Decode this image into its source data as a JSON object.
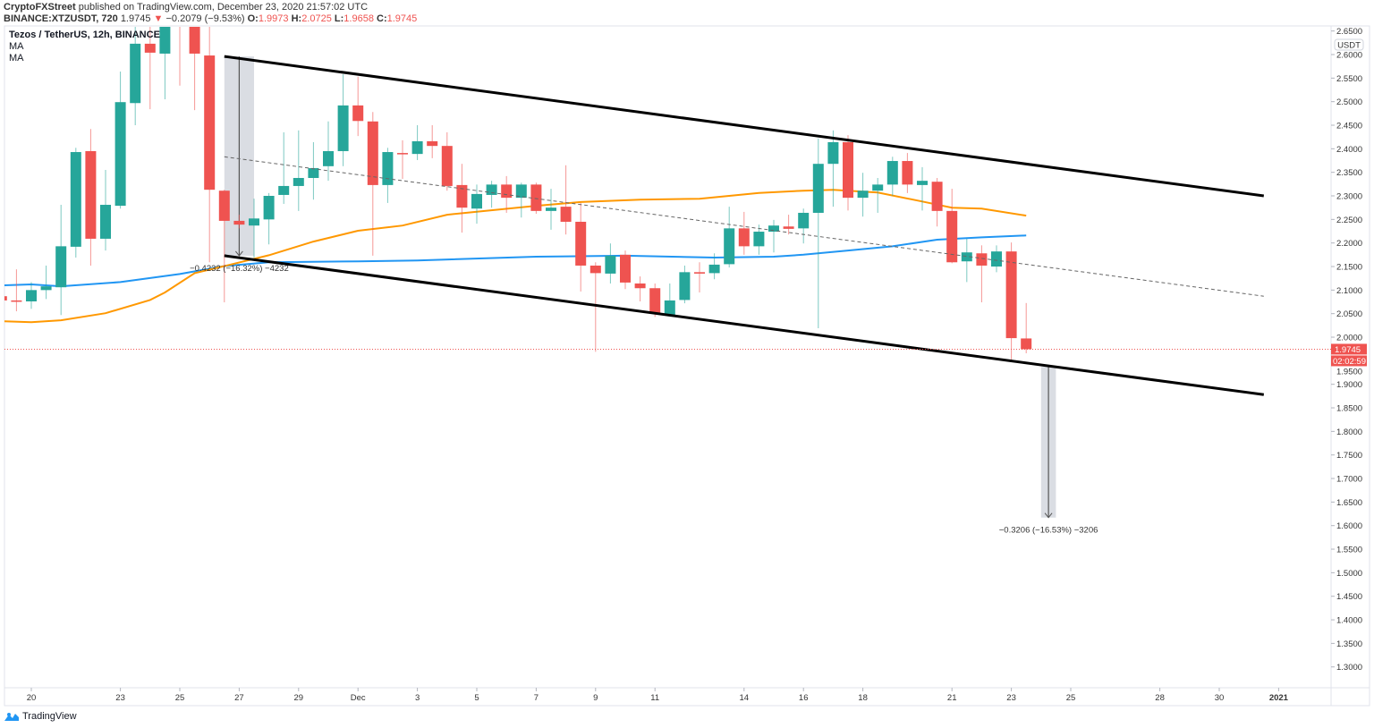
{
  "header": {
    "author": "CryptoFXStreet",
    "published": "published on TradingView.com, December 23, 2020 21:57:02 UTC",
    "symbol": "BINANCE:XTZUSDT, 720",
    "last": "1.9745",
    "change_arrow": "▼",
    "change": "−0.2079 (−9.53%)",
    "o_label": "O:",
    "o": "1.9973",
    "h_label": "H:",
    "h": "2.0725",
    "l_label": "L:",
    "l": "1.9658",
    "c_label": "C:",
    "c": "1.9745"
  },
  "legend": {
    "title": "Tezos / TetherUS, 12h, BINANCE",
    "ma1": "MA",
    "ma2": "MA"
  },
  "footer": {
    "brand": "TradingView",
    "icon": "tradingview-logo-icon"
  },
  "colors": {
    "up": "#26a69a",
    "down": "#ef5350",
    "ma_blue": "#2196f3",
    "ma_orange": "#ff9800",
    "channel": "#000000"
  },
  "chart_data": {
    "type": "candlestick",
    "title": "Tezos / TetherUS, 12h, BINANCE",
    "currency": "USDT",
    "ylim": [
      1.26,
      2.66
    ],
    "y_ticks": [
      "2.6500",
      "2.6000",
      "2.5500",
      "2.5000",
      "2.4500",
      "2.4000",
      "2.3500",
      "2.3000",
      "2.2500",
      "2.2000",
      "2.1500",
      "2.1000",
      "2.0500",
      "2.0000",
      "1.9500",
      "1.9000",
      "1.8500",
      "1.8000",
      "1.7500",
      "1.7000",
      "1.6500",
      "1.6000",
      "1.5500",
      "1.5000",
      "1.4500",
      "1.4000",
      "1.3500",
      "1.3000"
    ],
    "x_ticks": [
      {
        "label": "20",
        "t": "2020-11-20T00:00"
      },
      {
        "label": "23",
        "t": "2020-11-23T00:00"
      },
      {
        "label": "25",
        "t": "2020-11-25T00:00"
      },
      {
        "label": "27",
        "t": "2020-11-27T00:00"
      },
      {
        "label": "29",
        "t": "2020-11-29T00:00"
      },
      {
        "label": "Dec",
        "t": "2020-12-01T00:00"
      },
      {
        "label": "3",
        "t": "2020-12-03T00:00"
      },
      {
        "label": "5",
        "t": "2020-12-05T00:00"
      },
      {
        "label": "7",
        "t": "2020-12-07T00:00"
      },
      {
        "label": "9",
        "t": "2020-12-09T00:00"
      },
      {
        "label": "11",
        "t": "2020-12-11T00:00"
      },
      {
        "label": "14",
        "t": "2020-12-14T00:00"
      },
      {
        "label": "16",
        "t": "2020-12-16T00:00"
      },
      {
        "label": "18",
        "t": "2020-12-18T00:00"
      },
      {
        "label": "21",
        "t": "2020-12-21T00:00"
      },
      {
        "label": "23",
        "t": "2020-12-23T00:00"
      },
      {
        "label": "25",
        "t": "2020-12-25T00:00"
      },
      {
        "label": "28",
        "t": "2020-12-28T00:00"
      },
      {
        "label": "30",
        "t": "2020-12-30T00:00"
      },
      {
        "label": "2021",
        "t": "2021-01-01T00:00"
      }
    ],
    "candle_fields": [
      "t",
      "open",
      "high",
      "low",
      "close"
    ],
    "candles": [
      [
        "2020-11-19T00:00",
        2.087,
        2.091,
        2.07,
        2.078
      ],
      [
        "2020-11-19T12:00",
        2.078,
        2.144,
        2.055,
        2.076
      ],
      [
        "2020-11-20T00:00",
        2.076,
        2.117,
        2.06,
        2.1
      ],
      [
        "2020-11-20T12:00",
        2.1,
        2.152,
        2.081,
        2.108
      ],
      [
        "2020-11-21T00:00",
        2.106,
        2.281,
        2.047,
        2.193
      ],
      [
        "2020-11-21T12:00",
        2.192,
        2.402,
        2.169,
        2.393
      ],
      [
        "2020-11-22T00:00",
        2.395,
        2.442,
        2.152,
        2.209
      ],
      [
        "2020-11-22T12:00",
        2.209,
        2.355,
        2.184,
        2.281
      ],
      [
        "2020-11-23T00:00",
        2.279,
        2.564,
        2.273,
        2.499
      ],
      [
        "2020-11-23T12:00",
        2.497,
        2.68,
        2.45,
        2.623
      ],
      [
        "2020-11-24T00:00",
        2.623,
        2.67,
        2.484,
        2.604
      ],
      [
        "2020-11-24T12:00",
        2.602,
        2.72,
        2.505,
        2.68
      ],
      [
        "2020-11-25T00:00",
        2.7,
        2.75,
        2.534,
        2.67
      ],
      [
        "2020-11-25T12:00",
        2.68,
        2.72,
        2.482,
        2.602
      ],
      [
        "2020-11-26T00:00",
        2.598,
        2.67,
        2.159,
        2.313
      ],
      [
        "2020-11-26T12:00",
        2.311,
        2.313,
        2.074,
        2.247
      ],
      [
        "2020-11-27T00:00",
        2.247,
        2.26,
        2.231,
        2.239
      ],
      [
        "2020-11-27T12:00",
        2.237,
        2.294,
        2.169,
        2.252
      ],
      [
        "2020-11-28T00:00",
        2.25,
        2.306,
        2.197,
        2.3
      ],
      [
        "2020-11-28T12:00",
        2.302,
        2.435,
        2.283,
        2.321
      ],
      [
        "2020-11-29T00:00",
        2.321,
        2.439,
        2.268,
        2.338
      ],
      [
        "2020-11-29T12:00",
        2.338,
        2.414,
        2.292,
        2.359
      ],
      [
        "2020-11-30T00:00",
        2.363,
        2.458,
        2.332,
        2.395
      ],
      [
        "2020-11-30T12:00",
        2.395,
        2.558,
        2.363,
        2.492
      ],
      [
        "2020-12-01T00:00",
        2.492,
        2.553,
        2.427,
        2.459
      ],
      [
        "2020-12-01T12:00",
        2.458,
        2.478,
        2.173,
        2.323
      ],
      [
        "2020-12-02T00:00",
        2.323,
        2.402,
        2.285,
        2.393
      ],
      [
        "2020-12-02T12:00",
        2.391,
        2.418,
        2.336,
        2.389
      ],
      [
        "2020-12-03T00:00",
        2.389,
        2.45,
        2.376,
        2.416
      ],
      [
        "2020-12-03T12:00",
        2.416,
        2.45,
        2.38,
        2.406
      ],
      [
        "2020-12-04T00:00",
        2.406,
        2.435,
        2.311,
        2.321
      ],
      [
        "2020-12-04T12:00",
        2.323,
        2.368,
        2.222,
        2.275
      ],
      [
        "2020-12-05T00:00",
        2.273,
        2.324,
        2.241,
        2.304
      ],
      [
        "2020-12-05T12:00",
        2.302,
        2.332,
        2.275,
        2.324
      ],
      [
        "2020-12-06T00:00",
        2.324,
        2.342,
        2.264,
        2.296
      ],
      [
        "2020-12-06T12:00",
        2.296,
        2.328,
        2.254,
        2.324
      ],
      [
        "2020-12-07T00:00",
        2.324,
        2.328,
        2.262,
        2.268
      ],
      [
        "2020-12-07T12:00",
        2.268,
        2.315,
        2.228,
        2.275
      ],
      [
        "2020-12-08T00:00",
        2.277,
        2.365,
        2.218,
        2.245
      ],
      [
        "2020-12-08T12:00",
        2.245,
        2.285,
        2.097,
        2.152
      ],
      [
        "2020-12-09T00:00",
        2.152,
        2.159,
        1.969,
        2.136
      ],
      [
        "2020-12-09T12:00",
        2.135,
        2.199,
        2.114,
        2.173
      ],
      [
        "2020-12-10T00:00",
        2.175,
        2.184,
        2.102,
        2.116
      ],
      [
        "2020-12-10T12:00",
        2.114,
        2.129,
        2.076,
        2.104
      ],
      [
        "2020-12-11T00:00",
        2.104,
        2.114,
        2.043,
        2.051
      ],
      [
        "2020-12-11T12:00",
        2.047,
        2.114,
        2.047,
        2.078
      ],
      [
        "2020-12-12T00:00",
        2.079,
        2.152,
        2.072,
        2.138
      ],
      [
        "2020-12-12T12:00",
        2.138,
        2.159,
        2.095,
        2.135
      ],
      [
        "2020-12-13T00:00",
        2.136,
        2.178,
        2.123,
        2.154
      ],
      [
        "2020-12-13T12:00",
        2.155,
        2.277,
        2.148,
        2.231
      ],
      [
        "2020-12-14T00:00",
        2.231,
        2.266,
        2.175,
        2.193
      ],
      [
        "2020-12-14T12:00",
        2.193,
        2.239,
        2.175,
        2.224
      ],
      [
        "2020-12-15T00:00",
        2.224,
        2.249,
        2.18,
        2.237
      ],
      [
        "2020-12-15T12:00",
        2.235,
        2.26,
        2.218,
        2.23
      ],
      [
        "2020-12-16T00:00",
        2.231,
        2.273,
        2.199,
        2.264
      ],
      [
        "2020-12-16T12:00",
        2.264,
        2.422,
        2.019,
        2.368
      ],
      [
        "2020-12-17T00:00",
        2.368,
        2.439,
        2.277,
        2.414
      ],
      [
        "2020-12-17T12:00",
        2.414,
        2.429,
        2.269,
        2.296
      ],
      [
        "2020-12-18T00:00",
        2.296,
        2.349,
        2.256,
        2.311
      ],
      [
        "2020-12-18T12:00",
        2.311,
        2.338,
        2.264,
        2.324
      ],
      [
        "2020-12-19T00:00",
        2.324,
        2.383,
        2.3,
        2.374
      ],
      [
        "2020-12-19T12:00",
        2.374,
        2.391,
        2.306,
        2.324
      ],
      [
        "2020-12-20T00:00",
        2.323,
        2.361,
        2.269,
        2.332
      ],
      [
        "2020-12-20T12:00",
        2.33,
        2.338,
        2.235,
        2.268
      ],
      [
        "2020-12-21T00:00",
        2.268,
        2.315,
        2.157,
        2.159
      ],
      [
        "2020-12-21T12:00",
        2.161,
        2.209,
        2.117,
        2.18
      ],
      [
        "2020-12-22T00:00",
        2.178,
        2.195,
        2.074,
        2.152
      ],
      [
        "2020-12-22T12:00",
        2.15,
        2.195,
        2.138,
        2.182
      ],
      [
        "2020-12-23T00:00",
        2.182,
        2.201,
        1.952,
        1.998
      ],
      [
        "2020-12-23T12:00",
        1.9973,
        2.0725,
        1.9658,
        1.9745
      ]
    ],
    "moving_averages": [
      {
        "name": "MA",
        "color": "#2196f3",
        "points": [
          [
            "2020-11-19T00:00",
            2.11
          ],
          [
            "2020-11-20T00:00",
            2.112
          ],
          [
            "2020-11-21T00:00",
            2.108
          ],
          [
            "2020-11-23T00:00",
            2.117
          ],
          [
            "2020-11-25T00:00",
            2.134
          ],
          [
            "2020-11-26T12:00",
            2.151
          ],
          [
            "2020-11-28T00:00",
            2.159
          ],
          [
            "2020-12-01T00:00",
            2.161
          ],
          [
            "2020-12-03T00:00",
            2.163
          ],
          [
            "2020-12-07T00:00",
            2.171
          ],
          [
            "2020-12-10T00:00",
            2.173
          ],
          [
            "2020-12-13T00:00",
            2.169
          ],
          [
            "2020-12-15T00:00",
            2.171
          ],
          [
            "2020-12-16T00:00",
            2.175
          ],
          [
            "2020-12-17T12:00",
            2.184
          ],
          [
            "2020-12-19T00:00",
            2.193
          ],
          [
            "2020-12-20T12:00",
            2.207
          ],
          [
            "2020-12-22T00:00",
            2.212
          ],
          [
            "2020-12-23T12:00",
            2.216
          ]
        ]
      },
      {
        "name": "MA",
        "color": "#ff9800",
        "points": [
          [
            "2020-11-19T00:00",
            2.034
          ],
          [
            "2020-11-20T00:00",
            2.032
          ],
          [
            "2020-11-21T00:00",
            2.036
          ],
          [
            "2020-11-22T12:00",
            2.051
          ],
          [
            "2020-11-24T00:00",
            2.079
          ],
          [
            "2020-11-24T12:00",
            2.095
          ],
          [
            "2020-11-25T12:00",
            2.136
          ],
          [
            "2020-11-26T12:00",
            2.151
          ],
          [
            "2020-11-28T00:00",
            2.174
          ],
          [
            "2020-11-29T12:00",
            2.203
          ],
          [
            "2020-12-01T00:00",
            2.226
          ],
          [
            "2020-12-02T12:00",
            2.237
          ],
          [
            "2020-12-04T00:00",
            2.26
          ],
          [
            "2020-12-07T00:00",
            2.279
          ],
          [
            "2020-12-08T12:00",
            2.287
          ],
          [
            "2020-12-10T12:00",
            2.292
          ],
          [
            "2020-12-12T12:00",
            2.294
          ],
          [
            "2020-12-14T12:00",
            2.306
          ],
          [
            "2020-12-16T00:00",
            2.311
          ],
          [
            "2020-12-17T00:00",
            2.313
          ],
          [
            "2020-12-18T12:00",
            2.307
          ],
          [
            "2020-12-20T00:00",
            2.288
          ],
          [
            "2020-12-21T00:00",
            2.275
          ],
          [
            "2020-12-22T00:00",
            2.273
          ],
          [
            "2020-12-23T12:00",
            2.258
          ]
        ]
      }
    ],
    "trendlines": [
      {
        "name": "channel-upper",
        "style": "solid",
        "from": [
          "2020-11-26T12:00",
          2.596
        ],
        "to": [
          "2020-12-31T12:00",
          2.3
        ]
      },
      {
        "name": "channel-lower",
        "style": "solid",
        "from": [
          "2020-11-26T12:00",
          2.173
        ],
        "to": [
          "2020-12-31T12:00",
          1.878
        ]
      },
      {
        "name": "channel-middle",
        "style": "dashed",
        "from": [
          "2020-11-26T12:00",
          2.383
        ],
        "to": [
          "2020-12-31T12:00",
          2.087
        ]
      }
    ],
    "measurements": [
      {
        "from_t": "2020-11-26T12:00",
        "to_t": "2020-11-27T12:00",
        "top": 2.596,
        "bottom": 2.173,
        "label": "−0.4232 (−16.32%) −4232"
      },
      {
        "from_t": "2020-12-24T00:00",
        "to_t": "2020-12-24T12:00",
        "top": 1.937,
        "bottom": 1.617,
        "label": "−0.3206 (−16.53%) −3206"
      }
    ],
    "last_price": {
      "value": 1.9745,
      "label": "1.9745",
      "countdown": "02:02:59"
    }
  }
}
